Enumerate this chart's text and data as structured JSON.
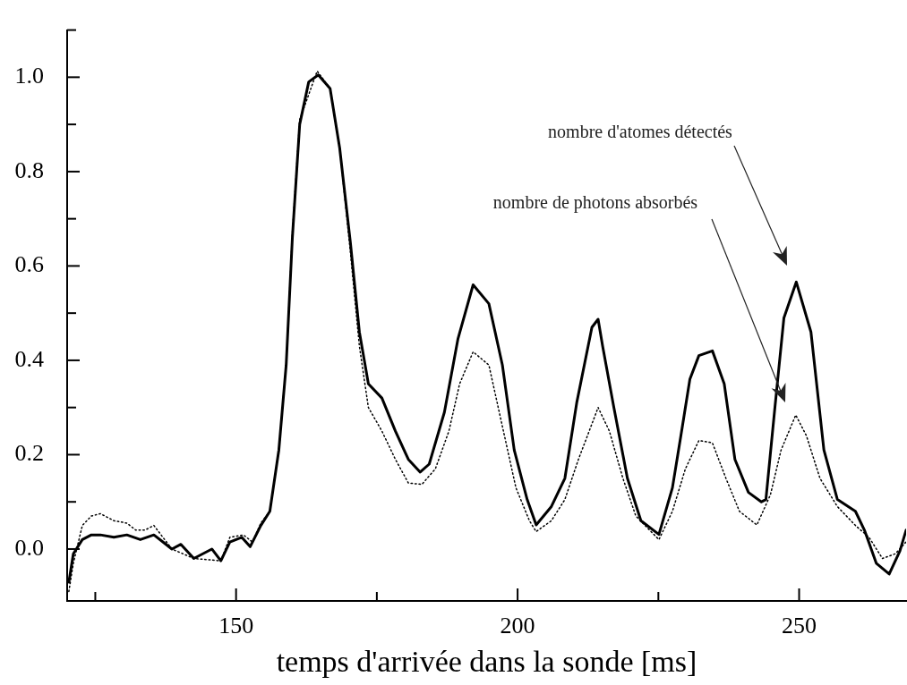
{
  "chart_data": {
    "type": "line",
    "xlabel": "temps d'arrivée dans la sonde [ms]",
    "xlim": [
      120,
      269
    ],
    "ylim": [
      -0.11,
      1.1
    ],
    "xticks": [
      {
        "value": 125,
        "label": null
      },
      150,
      {
        "value": 175,
        "label": null
      },
      200,
      {
        "value": 225,
        "label": null
      },
      250
    ],
    "yticks": [
      {
        "value": 0,
        "label": "0.0"
      },
      {
        "value": 0.1,
        "label": null
      },
      {
        "value": 0.2,
        "label": "0.2"
      },
      {
        "value": 0.3,
        "label": null
      },
      {
        "value": 0.4,
        "label": "0.4"
      },
      {
        "value": 0.5,
        "label": null
      },
      {
        "value": 0.6,
        "label": "0.6"
      },
      {
        "value": 0.7,
        "label": null
      },
      {
        "value": 0.8,
        "label": "0.8"
      },
      {
        "value": 0.9,
        "label": null
      },
      {
        "value": 1,
        "label": "1.0"
      },
      {
        "value": 1.1,
        "label": null
      }
    ],
    "legend": false,
    "marker": "none",
    "annotations": [
      "nombre d'atomes détectés",
      "nombre de photons absorbés"
    ],
    "series": [
      {
        "color": "#000000",
        "line_style": "solid",
        "x": [
          120.3,
          121.1,
          122.7,
          124.3,
          125.9,
          128.3,
          130.6,
          133.0,
          135.4,
          137.0,
          138.6,
          140.2,
          142.5,
          145.7,
          147.3,
          148.9,
          151.0,
          152.5,
          154.4,
          156.0,
          157.6,
          158.9,
          160.0,
          161.3,
          162.9,
          164.6,
          166.7,
          168.4,
          170.3,
          171.9,
          173.5,
          175.9,
          178.3,
          180.6,
          182.7,
          184.3,
          187.0,
          189.4,
          192.1,
          194.9,
          197.3,
          199.4,
          201.7,
          203.3,
          206.0,
          208.4,
          210.5,
          213.2,
          214.3,
          215.1,
          217.1,
          219.5,
          221.9,
          225.1,
          227.5,
          229.0,
          230.6,
          232.2,
          234.6,
          236.7,
          238.6,
          241.0,
          243.3,
          244.1,
          245.7,
          247.3,
          249.5,
          252.1,
          254.4,
          256.8,
          260.0,
          261.6,
          263.7,
          266.0,
          267.9,
          269.0
        ],
        "values": [
          -0.07,
          -0.01,
          0.02,
          0.03,
          0.03,
          0.025,
          0.03,
          0.02,
          0.03,
          0.015,
          0.0,
          0.01,
          -0.02,
          0.0,
          -0.025,
          0.015,
          0.025,
          0.005,
          0.05,
          0.08,
          0.21,
          0.39,
          0.66,
          0.9,
          0.99,
          1.005,
          0.976,
          0.85,
          0.65,
          0.46,
          0.35,
          0.32,
          0.25,
          0.19,
          0.163,
          0.18,
          0.29,
          0.445,
          0.56,
          0.52,
          0.39,
          0.21,
          0.105,
          0.051,
          0.09,
          0.15,
          0.31,
          0.47,
          0.487,
          0.43,
          0.3,
          0.15,
          0.06,
          0.031,
          0.13,
          0.24,
          0.36,
          0.41,
          0.42,
          0.35,
          0.19,
          0.12,
          0.1,
          0.105,
          0.3,
          0.49,
          0.566,
          0.46,
          0.21,
          0.105,
          0.08,
          0.04,
          -0.03,
          -0.053,
          -0.004,
          0.04
        ]
      },
      {
        "color": "#000000",
        "line_style": "dotted",
        "x": [
          120.3,
          121.1,
          122.7,
          124.3,
          125.9,
          128.3,
          130.6,
          132.2,
          133.8,
          135.4,
          137.0,
          138.6,
          142.5,
          147.3,
          148.9,
          151.3,
          152.9,
          154.4,
          156.0,
          157.6,
          158.9,
          160.0,
          161.3,
          164.4,
          166.7,
          168.4,
          170.3,
          171.9,
          173.5,
          175.9,
          178.3,
          180.6,
          183.0,
          185.4,
          187.8,
          189.7,
          192.1,
          194.9,
          197.3,
          199.7,
          202.1,
          203.3,
          206.0,
          208.4,
          210.8,
          212.4,
          214.3,
          216.3,
          218.7,
          221.0,
          225.1,
          227.5,
          229.8,
          232.2,
          234.6,
          237.0,
          239.4,
          242.5,
          244.9,
          246.8,
          249.4,
          251.3,
          253.7,
          256.8,
          260.0,
          262.4,
          264.8,
          267.1,
          269.0
        ],
        "values": [
          -0.09,
          -0.03,
          0.05,
          0.07,
          0.075,
          0.06,
          0.055,
          0.04,
          0.04,
          0.05,
          0.025,
          0.0,
          -0.02,
          -0.025,
          0.025,
          0.03,
          0.015,
          0.055,
          0.08,
          0.21,
          0.39,
          0.67,
          0.91,
          1.013,
          0.976,
          0.85,
          0.63,
          0.43,
          0.3,
          0.25,
          0.19,
          0.14,
          0.137,
          0.17,
          0.25,
          0.35,
          0.418,
          0.39,
          0.26,
          0.13,
          0.06,
          0.037,
          0.06,
          0.105,
          0.19,
          0.24,
          0.3,
          0.25,
          0.15,
          0.07,
          0.02,
          0.08,
          0.17,
          0.23,
          0.225,
          0.15,
          0.08,
          0.051,
          0.115,
          0.21,
          0.284,
          0.24,
          0.15,
          0.09,
          0.05,
          0.025,
          -0.02,
          -0.01,
          0.015
        ]
      }
    ]
  }
}
